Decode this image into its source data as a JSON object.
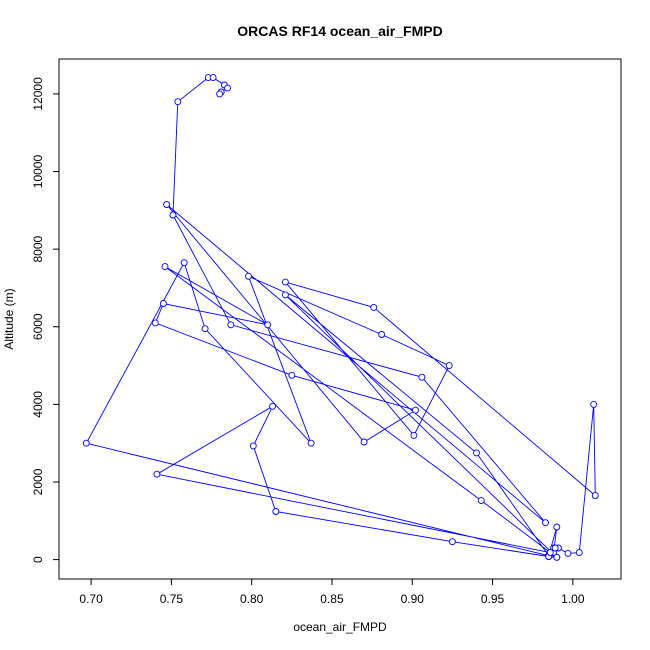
{
  "chart_data": {
    "type": "line",
    "title": "ORCAS RF14 ocean_air_FMPD",
    "xlabel": "ocean_air_FMPD",
    "ylabel": "Altitude (m)",
    "xlim": [
      0.68,
      1.03
    ],
    "ylim": [
      -500,
      12900
    ],
    "x_ticks": [
      0.7,
      0.75,
      0.8,
      0.85,
      0.9,
      0.95,
      1.0
    ],
    "x_tick_labels": [
      "0.70",
      "0.75",
      "0.80",
      "0.85",
      "0.90",
      "0.95",
      "1.00"
    ],
    "y_ticks": [
      0,
      2000,
      4000,
      6000,
      8000,
      10000,
      12000
    ],
    "y_tick_labels": [
      "0",
      "2000",
      "4000",
      "6000",
      "8000",
      "10000",
      "12000"
    ],
    "grid": false,
    "marker": "open-circle",
    "color": "#0000ff",
    "series": [
      {
        "x": [
          0.985,
          0.99,
          0.986,
          0.988,
          0.991,
          0.997,
          1.004,
          1.013,
          1.014,
          0.876,
          0.821,
          0.901,
          0.923,
          0.881,
          0.798,
          0.837,
          0.771,
          0.758,
          0.697,
          0.985,
          0.99,
          0.988,
          0.989,
          0.985,
          0.94,
          0.821,
          0.99,
          0.985,
          0.925,
          0.815,
          0.801,
          0.813,
          0.741,
          0.986,
          0.943,
          0.746,
          0.81,
          0.745,
          0.74,
          0.825,
          0.902,
          0.87,
          0.747,
          0.983,
          0.906,
          0.787,
          0.751,
          0.754,
          0.773,
          0.776,
          0.783,
          0.785,
          0.781,
          0.78
        ],
        "y": [
          80,
          60,
          120,
          300,
          300,
          160,
          180,
          4000,
          1650,
          6500,
          7150,
          3200,
          5000,
          5800,
          7300,
          3000,
          5950,
          7650,
          3000,
          100,
          840,
          180,
          300,
          100,
          2750,
          6820,
          60,
          80,
          460,
          1240,
          2930,
          3950,
          2200,
          180,
          1520,
          7550,
          6050,
          6600,
          6100,
          4750,
          3850,
          3030,
          9150,
          950,
          4700,
          6050,
          8880,
          11800,
          12420,
          12420,
          12230,
          12150,
          12050,
          12000
        ]
      }
    ]
  }
}
